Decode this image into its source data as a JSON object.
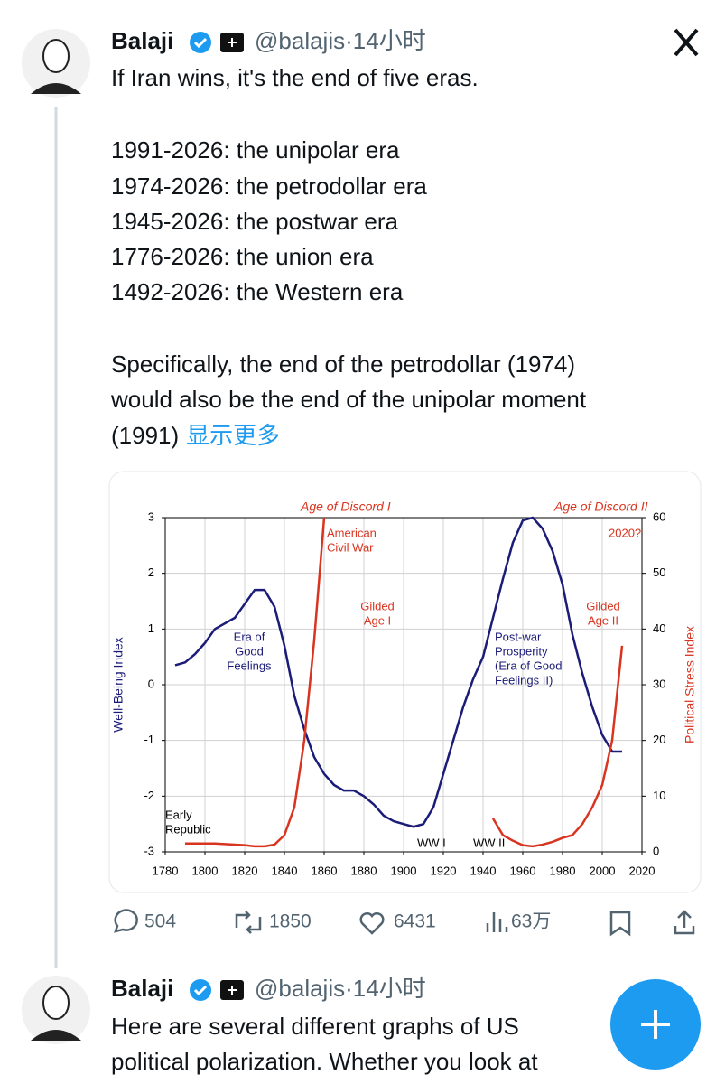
{
  "tweets": [
    {
      "name": "Balaji",
      "handle": "@balajis",
      "time": "·14小时",
      "lines": [
        "If Iran wins, it's the end of five eras.",
        "1991-2026: the unipolar era",
        "1974-2026: the petrodollar era",
        "1945-2026: the postwar era",
        "1776-2026: the union era",
        "1492-2026: the Western era",
        "Specifically, the end of the petrodollar (1974)",
        "would also be the end of the unipolar moment",
        "(1991)"
      ],
      "more": "显示更多",
      "stats": {
        "replies": "504",
        "retweets": "1850",
        "likes": "6431",
        "views": "63万"
      }
    },
    {
      "name": "Balaji",
      "handle": "@balajis",
      "time": "·14小时",
      "lines": [
        "Here are several different graphs of US",
        "political polarization. Whether you look at"
      ]
    }
  ],
  "chart_data": {
    "type": "line",
    "ylabel": "Well-Being Index",
    "y2label": "Political Stress Index",
    "x": [
      1785,
      1790,
      1795,
      1800,
      1805,
      1810,
      1815,
      1820,
      1825,
      1830,
      1835,
      1840,
      1845,
      1850,
      1855,
      1860,
      1865,
      1870,
      1875,
      1880,
      1885,
      1890,
      1895,
      1900,
      1905,
      1910,
      1915,
      1920,
      1925,
      1930,
      1935,
      1940,
      1945,
      1950,
      1955,
      1960,
      1965,
      1970,
      1975,
      1980,
      1985,
      1990,
      1995,
      2000,
      2005,
      2010
    ],
    "series": [
      {
        "name": "Well-Being Index",
        "color": "#1b1b78",
        "values": [
          0.35,
          0.4,
          0.55,
          0.75,
          1.0,
          1.1,
          1.2,
          1.45,
          1.7,
          1.7,
          1.4,
          0.7,
          -0.2,
          -0.8,
          -1.3,
          -1.6,
          -1.8,
          -1.9,
          -1.9,
          -2.0,
          -2.15,
          -2.35,
          -2.45,
          -2.5,
          -2.55,
          -2.5,
          -2.2,
          -1.6,
          -1.0,
          -0.4,
          0.1,
          0.5,
          1.2,
          1.9,
          2.55,
          2.95,
          3.0,
          2.8,
          2.4,
          1.8,
          0.9,
          0.2,
          -0.4,
          -0.9,
          -1.2,
          -1.2
        ]
      },
      {
        "name": "Political Stress Index",
        "color": "#d9341f",
        "axis": "y2",
        "values": [
          null,
          1.5,
          1.5,
          1.5,
          1.5,
          1.4,
          1.3,
          1.2,
          1.0,
          1.0,
          1.3,
          3,
          8,
          20,
          38,
          60,
          null,
          null,
          null,
          null,
          null,
          null,
          null,
          null,
          null,
          null,
          null,
          null,
          null,
          null,
          null,
          null,
          6,
          3,
          2,
          1.2,
          1,
          1.3,
          1.8,
          2.5,
          3,
          5,
          8,
          12,
          20,
          37
        ]
      }
    ],
    "xlim": [
      1780,
      2020
    ],
    "xticks": [
      1780,
      1800,
      1820,
      1840,
      1860,
      1880,
      1900,
      1920,
      1940,
      1960,
      1980,
      2000,
      2020
    ],
    "ylim": [
      -3,
      3
    ],
    "yticks": [
      -3,
      -2,
      -1,
      0,
      1,
      2,
      3
    ],
    "y2lim": [
      0,
      60
    ],
    "y2ticks": [
      0,
      10,
      20,
      30,
      40,
      50,
      60
    ],
    "grid": true,
    "annotations": [
      [
        "Age of Discord I"
      ],
      [
        "Age of Discord II"
      ],
      [
        "2020?"
      ],
      [
        "American",
        "Civil War"
      ],
      [
        "Gilded",
        "Age I"
      ],
      [
        "Gilded",
        "Age II"
      ],
      [
        "Era of",
        "Good",
        "Feelings"
      ],
      [
        "Post-war",
        "Prosperity",
        "(Era of Good",
        "Feelings II)"
      ],
      [
        "Early",
        "Republic"
      ],
      [
        "WW I"
      ],
      [
        "WW II"
      ]
    ]
  }
}
